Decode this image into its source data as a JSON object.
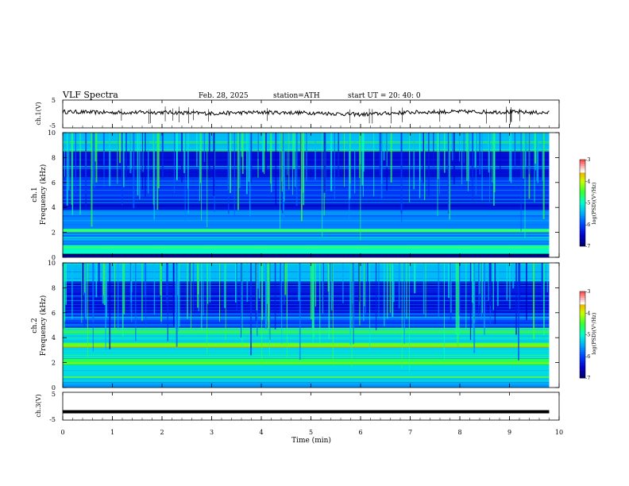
{
  "header": {
    "title": "VLF  Spectra",
    "date": "Feb. 28, 2025",
    "station": "station=ATH",
    "start_ut": "start  UT  =   20: 40: 0"
  },
  "colors": {
    "spectrum_scale": [
      "#000066",
      "#0000cc",
      "#0044ff",
      "#00aaff",
      "#00ffcc",
      "#33ff33",
      "#ccff00",
      "#ff9900",
      "#ff0000",
      "#ffffff"
    ],
    "trace": "#000000"
  },
  "chart_data": [
    {
      "type": "line",
      "name": "ch1",
      "ylabel": "ch.1(V)",
      "yticks": [
        "5",
        "-5"
      ],
      "ylim": [
        -5,
        5
      ],
      "xlim": [
        0,
        10
      ],
      "x": [
        0,
        1,
        2,
        3,
        4,
        5,
        6,
        7,
        8,
        9,
        9.8
      ],
      "y": [
        0.8,
        0.5,
        0.6,
        0.2,
        0.6,
        0.4,
        -0.2,
        0.6,
        0.8,
        0.7,
        0.4
      ]
    },
    {
      "type": "heatmap",
      "name": "ch1-spectrogram",
      "ylabel_line1": "ch.1",
      "ylabel_line2": "Frequency  (kHz)",
      "yticks": [
        "0",
        "2",
        "4",
        "6",
        "8",
        "10"
      ],
      "ylim": [
        0,
        10
      ],
      "xlim": [
        0,
        9.8
      ],
      "colorbar": {
        "label": "log(PSD)(V²/Hz)",
        "ticks": [
          "-3",
          "-4",
          "-5",
          "-6",
          "-7"
        ],
        "range": [
          -7,
          -3
        ]
      },
      "bands_khz": [
        {
          "from": 0,
          "to": 0.3,
          "log_psd": -7
        },
        {
          "from": 0.3,
          "to": 1.0,
          "log_psd": -5.0
        },
        {
          "from": 1.0,
          "to": 2.0,
          "log_psd": -5.8
        },
        {
          "from": 2.0,
          "to": 2.3,
          "log_psd": -4.8
        },
        {
          "from": 2.3,
          "to": 3.8,
          "log_psd": -5.7
        },
        {
          "from": 3.8,
          "to": 5.0,
          "log_psd": -6.3
        },
        {
          "from": 5.0,
          "to": 6.5,
          "log_psd": -6.1
        },
        {
          "from": 6.5,
          "to": 8.5,
          "log_psd": -6.4
        },
        {
          "from": 8.5,
          "to": 10.0,
          "log_psd": -5.4
        }
      ]
    },
    {
      "type": "heatmap",
      "name": "ch2-spectrogram",
      "ylabel_line1": "ch.2",
      "ylabel_line2": "Frequency  (kHz)",
      "yticks": [
        "0",
        "2",
        "4",
        "6",
        "8",
        "10"
      ],
      "ylim": [
        0,
        10
      ],
      "xlim": [
        0,
        9.8
      ],
      "colorbar": {
        "label": "log(PSD)(V²/Hz)",
        "ticks": [
          "-3",
          "-4",
          "-5",
          "-6",
          "-7"
        ],
        "range": [
          -7,
          -3
        ]
      },
      "bands_khz": [
        {
          "from": 0,
          "to": 0.5,
          "log_psd": -5.6
        },
        {
          "from": 0.5,
          "to": 1.8,
          "log_psd": -5.2
        },
        {
          "from": 1.8,
          "to": 2.3,
          "log_psd": -4.6
        },
        {
          "from": 2.3,
          "to": 3.2,
          "log_psd": -5.2
        },
        {
          "from": 3.2,
          "to": 3.6,
          "log_psd": -4.4
        },
        {
          "from": 3.6,
          "to": 4.8,
          "log_psd": -5.3
        },
        {
          "from": 4.8,
          "to": 6.0,
          "log_psd": -6.0
        },
        {
          "from": 6.0,
          "to": 8.5,
          "log_psd": -6.4
        },
        {
          "from": 8.5,
          "to": 10.0,
          "log_psd": -5.4
        }
      ]
    },
    {
      "type": "line",
      "name": "ch3",
      "ylabel": "ch.3(V)",
      "yticks": [
        "5",
        "-5"
      ],
      "ylim": [
        -5,
        5
      ],
      "xlim": [
        0,
        10
      ],
      "x": [
        0,
        9.8
      ],
      "y": [
        -2,
        -2
      ]
    }
  ],
  "xaxis": {
    "label": "Time  (min)",
    "ticks": [
      "0",
      "1",
      "2",
      "3",
      "4",
      "5",
      "6",
      "7",
      "8",
      "9",
      "10"
    ],
    "range": [
      0,
      10
    ]
  }
}
